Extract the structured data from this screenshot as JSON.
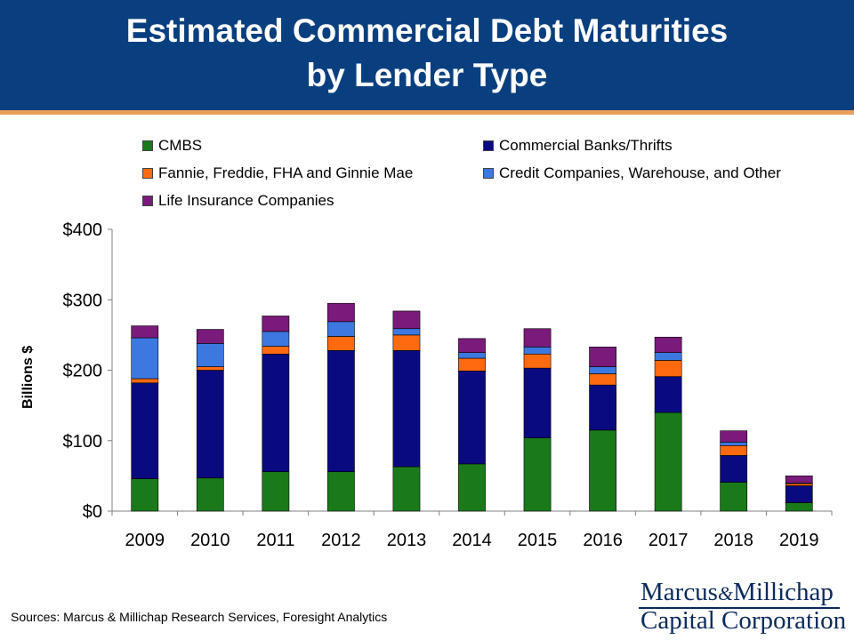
{
  "header": {
    "title_line1": "Estimated Commercial Debt Maturities",
    "title_line2": "by Lender Type"
  },
  "footer": {
    "source": "Sources: Marcus & Millichap Research Services, Foresight Analytics",
    "logo_line1_a": "Marcus",
    "logo_amp": "&",
    "logo_line1_b": "Millichap",
    "logo_line2": "Capital Corporation"
  },
  "colors": {
    "header_bg": "#0a3f7f",
    "header_rule": "#e8a05a",
    "logo_text": "#0a2a5c"
  },
  "chart_data": {
    "type": "bar",
    "stacked": true,
    "title": "Estimated Commercial Debt Maturities by Lender Type",
    "xlabel": "",
    "ylabel": "Billions $",
    "ylim": [
      0,
      400
    ],
    "yticks": [
      0,
      100,
      200,
      300,
      400
    ],
    "ytick_labels": [
      "$0",
      "$100",
      "$200",
      "$300",
      "$400"
    ],
    "grid": false,
    "legend_position": "top",
    "categories": [
      "2009",
      "2010",
      "2011",
      "2012",
      "2013",
      "2014",
      "2015",
      "2016",
      "2017",
      "2018",
      "2019"
    ],
    "series": [
      {
        "name": "CMBS",
        "color": "#1a7a1a",
        "values": [
          46,
          47,
          56,
          56,
          63,
          67,
          104,
          115,
          140,
          41,
          12
        ]
      },
      {
        "name": "Commercial Banks/Thrifts",
        "color": "#0a0a80",
        "values": [
          136,
          153,
          167,
          172,
          165,
          132,
          99,
          64,
          51,
          38,
          24
        ]
      },
      {
        "name": "Fannie, Freddie, FHA and Ginnie Mae",
        "color": "#ff6a10",
        "values": [
          6,
          5,
          11,
          20,
          22,
          18,
          20,
          16,
          23,
          14,
          3
        ]
      },
      {
        "name": "Credit Companies, Warehouse, and Other",
        "color": "#3c78e0",
        "values": [
          58,
          33,
          21,
          21,
          9,
          8,
          10,
          10,
          11,
          5,
          1
        ]
      },
      {
        "name": "Life Insurance Companies",
        "color": "#7a1a7a",
        "values": [
          17,
          20,
          22,
          26,
          25,
          20,
          26,
          28,
          22,
          16,
          10
        ]
      }
    ]
  }
}
